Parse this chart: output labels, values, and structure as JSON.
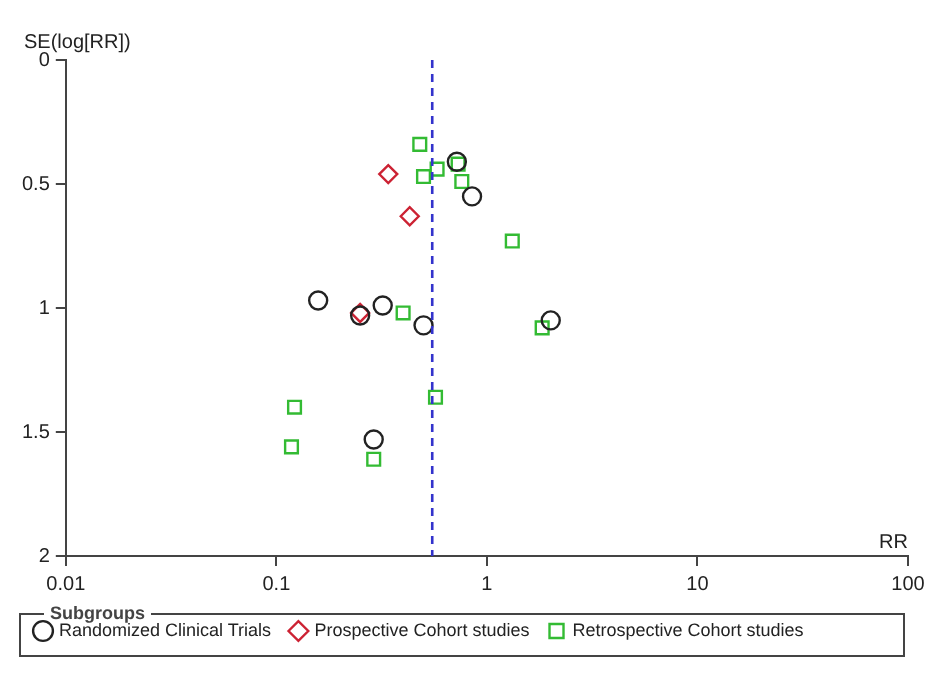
{
  "chart_data": {
    "type": "scatter",
    "xlabel": "RR",
    "ylabel": "SE(log[RR])",
    "legend_title": "Subgroups",
    "legend": "bottom",
    "grid": false,
    "log": "x",
    "xlim": [
      0.01,
      100
    ],
    "xticks": [
      0.01,
      0.1,
      1,
      10,
      100
    ],
    "ylim": [
      2,
      0
    ],
    "yticks": [
      0,
      0.5,
      1,
      1.5,
      2
    ],
    "ref_lines": [
      {
        "axis": "x",
        "value": 0.55,
        "color": "#3333cc",
        "line_style": "dashed"
      }
    ],
    "series": [
      {
        "name": "Randomized Clinical Trials",
        "color": "#222222",
        "marker": "circle",
        "x": [
          0.72,
          0.85,
          0.158,
          0.25,
          0.32,
          0.5,
          2.01,
          0.29
        ],
        "values": [
          0.41,
          0.55,
          0.97,
          1.03,
          0.99,
          1.07,
          1.05,
          1.53
        ]
      },
      {
        "name": "Prospective Cohort studies",
        "color": "#cc2233",
        "marker": "diamond",
        "x": [
          0.34,
          0.43,
          0.25
        ],
        "values": [
          0.46,
          0.63,
          1.02
        ]
      },
      {
        "name": "Retrospective Cohort studies",
        "color": "#33bb33",
        "marker": "square",
        "x": [
          0.48,
          0.5,
          0.58,
          0.73,
          0.76,
          1.32,
          0.4,
          1.83,
          0.57,
          0.122,
          0.118,
          0.29
        ],
        "values": [
          0.34,
          0.47,
          0.44,
          0.42,
          0.49,
          0.73,
          1.02,
          1.08,
          1.36,
          1.4,
          1.56,
          1.61
        ]
      }
    ]
  }
}
